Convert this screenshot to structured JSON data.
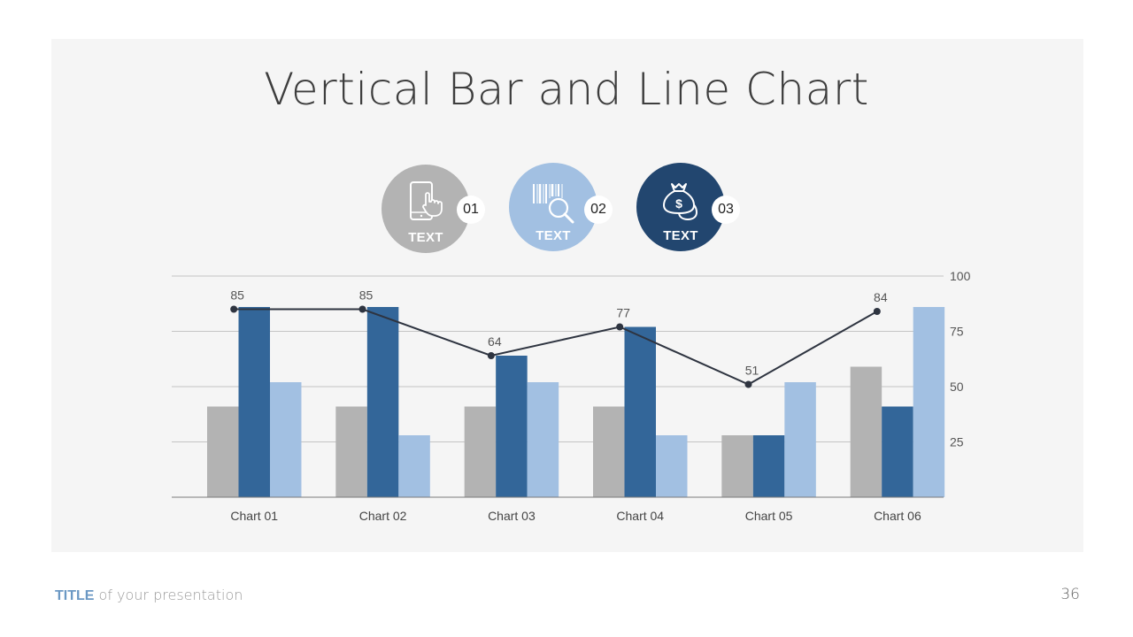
{
  "slide": {
    "title": "Vertical Bar and Line Chart",
    "page_number": "36"
  },
  "footer": {
    "title_strong": "TITLE",
    "title_rest": " of your presentation"
  },
  "features": [
    {
      "label": "TEXT",
      "number": "01",
      "icon": "mobile-touch-icon",
      "color": "#b3b3b3"
    },
    {
      "label": "TEXT",
      "number": "02",
      "icon": "barcode-search-icon",
      "color": "#a2c0e2"
    },
    {
      "label": "TEXT",
      "number": "03",
      "icon": "money-bags-icon",
      "color": "#22466f"
    }
  ],
  "chart_data": {
    "type": "bar",
    "categories": [
      "Chart 01",
      "Chart 02",
      "Chart 03",
      "Chart 04",
      "Chart 05",
      "Chart 06"
    ],
    "series": [
      {
        "values": [
          41,
          41,
          41,
          41,
          28,
          59
        ],
        "color": "#b3b3b3"
      },
      {
        "values": [
          86,
          86,
          64,
          77,
          28,
          41
        ],
        "color": "#336699"
      },
      {
        "values": [
          52,
          28,
          52,
          28,
          52,
          86
        ],
        "color": "#a2c0e2"
      }
    ],
    "line": {
      "values": [
        85,
        85,
        64,
        77,
        51,
        84
      ],
      "labels": [
        "85",
        "85",
        "64",
        "77",
        "51",
        "84"
      ],
      "color": "#2e3440"
    },
    "ylim": [
      0,
      100
    ],
    "y_ticks": [
      25,
      50,
      75,
      100
    ],
    "y_axis_position": "right",
    "grid": true
  }
}
